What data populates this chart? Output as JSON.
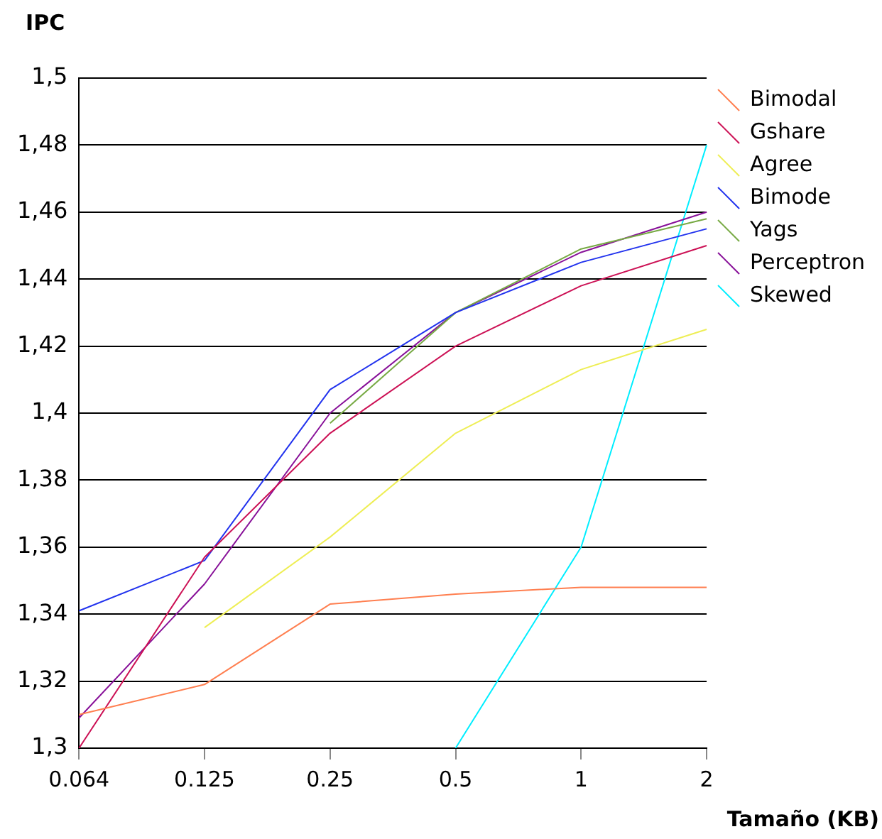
{
  "chart_data": {
    "type": "line",
    "xlabel": "Tamaño (KB)",
    "ylabel": "IPC",
    "categories": [
      "0.064",
      "0.125",
      "0.25",
      "0.5",
      "1",
      "2"
    ],
    "series": [
      {
        "name": "Bimodal",
        "color": "#ff7f50",
        "values": [
          1.31,
          1.319,
          1.343,
          1.346,
          1.348,
          1.348
        ]
      },
      {
        "name": "Gshare",
        "color": "#cc1155",
        "values": [
          1.3,
          1.357,
          1.394,
          1.42,
          1.438,
          1.45
        ]
      },
      {
        "name": "Agree",
        "color": "#eeee55",
        "values": [
          null,
          1.336,
          1.363,
          1.394,
          1.413,
          1.425
        ]
      },
      {
        "name": "Bimode",
        "color": "#2233ee",
        "values": [
          1.341,
          1.356,
          1.407,
          1.43,
          1.445,
          1.455
        ]
      },
      {
        "name": "Yags",
        "color": "#77aa44",
        "values": [
          null,
          null,
          1.397,
          1.43,
          1.449,
          1.458
        ]
      },
      {
        "name": "Perceptron",
        "color": "#881199",
        "values": [
          1.309,
          1.349,
          1.4,
          1.43,
          1.448,
          1.46
        ]
      },
      {
        "name": "Skewed",
        "color": "#00eeff",
        "values": [
          null,
          null,
          null,
          1.3,
          1.36,
          1.48
        ]
      }
    ],
    "ylim": [
      1.3,
      1.5
    ],
    "yticks": [
      {
        "value": 1.3,
        "label": "1,3"
      },
      {
        "value": 1.32,
        "label": "1,32"
      },
      {
        "value": 1.34,
        "label": "1,34"
      },
      {
        "value": 1.36,
        "label": "1,36"
      },
      {
        "value": 1.38,
        "label": "1,38"
      },
      {
        "value": 1.4,
        "label": "1,4"
      },
      {
        "value": 1.42,
        "label": "1,42"
      },
      {
        "value": 1.44,
        "label": "1,44"
      },
      {
        "value": 1.46,
        "label": "1,46"
      },
      {
        "value": 1.48,
        "label": "1,48"
      },
      {
        "value": 1.5,
        "label": "1,5"
      }
    ],
    "grid": "y",
    "legend": "top right",
    "marker": "none",
    "line_style": "solid"
  }
}
